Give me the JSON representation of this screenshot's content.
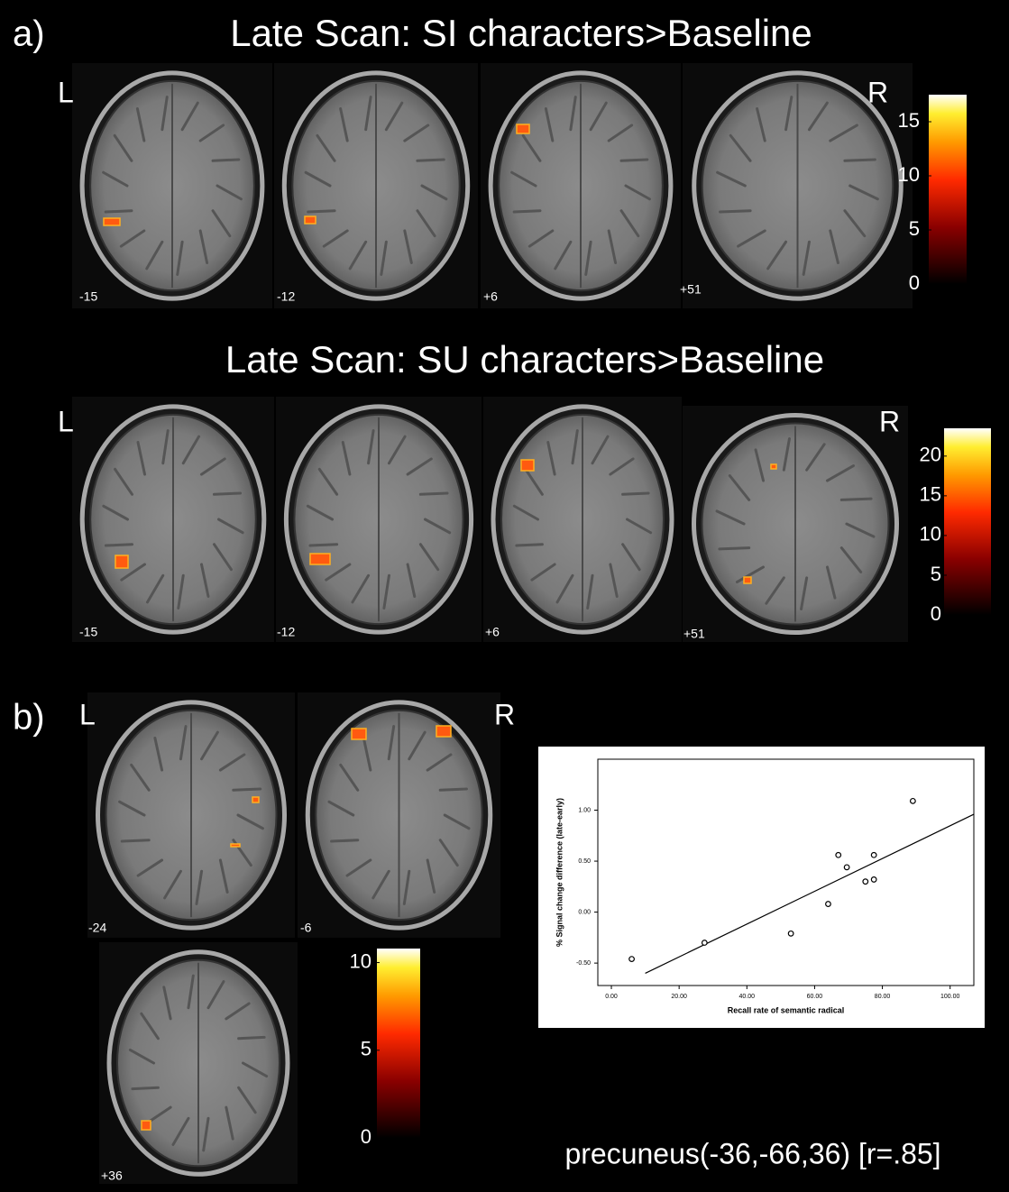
{
  "panel_a": {
    "label": "a)",
    "rows": [
      {
        "title": "Late Scan: SI characters>Baseline",
        "left": "L",
        "right": "R",
        "slices": [
          "-15",
          "-12",
          "+6",
          "+51"
        ],
        "colorbar": {
          "ylim": [
            0,
            17.5
          ],
          "yticks": [
            0,
            5,
            10,
            15
          ]
        }
      },
      {
        "title": "Late Scan: SU characters>Baseline",
        "left": "L",
        "right": "R",
        "slices": [
          "-15",
          "-12",
          "+6",
          "+51"
        ],
        "colorbar": {
          "ylim": [
            0,
            23.5
          ],
          "yticks": [
            0,
            5,
            10,
            15,
            20
          ]
        }
      }
    ]
  },
  "panel_b": {
    "label": "b)",
    "left": "L",
    "right": "R",
    "slices": [
      "-24",
      "-6",
      "+36"
    ],
    "colorbar": {
      "ylim": [
        0,
        10.8
      ],
      "yticks": [
        0,
        5,
        10
      ]
    },
    "caption": "precuneus(-36,-66,36) [r=.85]"
  },
  "chart_data": {
    "type": "scatter",
    "x_label": "Recall rate of semantic radical",
    "y_label": "% Signal change difference (late-early)",
    "x": [
      6,
      27.5,
      53,
      64,
      67,
      69.5,
      75,
      77.5,
      77.5,
      89
    ],
    "values": [
      -0.46,
      -0.3,
      -0.21,
      0.08,
      0.56,
      0.44,
      0.3,
      0.56,
      0.32,
      1.09
    ],
    "fit_line": {
      "x": [
        10,
        107
      ],
      "y": [
        -0.6,
        0.96
      ]
    },
    "xlim": [
      -4,
      107
    ],
    "xticks": [
      {
        "value": 0,
        "label": "0.00"
      },
      {
        "value": 20,
        "label": "20.00"
      },
      {
        "value": 40,
        "label": "40.00"
      },
      {
        "value": 60,
        "label": "60.00"
      },
      {
        "value": 80,
        "label": "80.00"
      },
      {
        "value": 100,
        "label": "100.00"
      }
    ],
    "ylim": [
      -0.72,
      1.5
    ],
    "yticks": [
      {
        "value": -0.5,
        "label": "-0.50"
      },
      {
        "value": 0,
        "label": "0.00"
      },
      {
        "value": 0.5,
        "label": "0.50"
      },
      {
        "value": 1,
        "label": "1.00"
      }
    ]
  }
}
